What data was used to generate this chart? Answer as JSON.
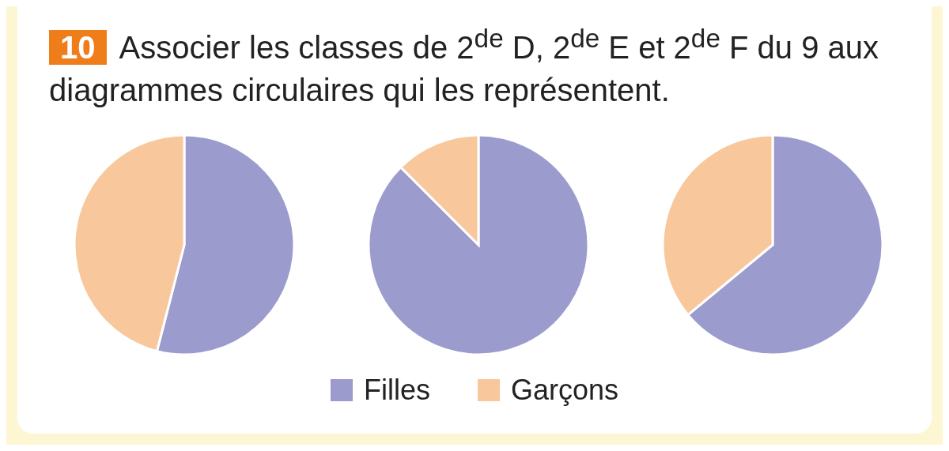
{
  "chart_data": [
    {
      "type": "pie",
      "title": "Associer les classes de 2$^{de}$ D, 2$^{de}$ E et 2$^{de}$ F du 9 aux diagrammes circulaires qui les représentent.",
      "annotations": [
        "10"
      ],
      "categories": [
        "Filles",
        "Garçons"
      ],
      "values": [
        54,
        46
      ],
      "colors": [
        "#9b9ccd",
        "#f8c89c"
      ],
      "legend": "bottom"
    },
    {
      "type": "pie",
      "categories": [
        null,
        null
      ],
      "values": [
        87.5,
        12.5
      ],
      "colors": [
        "#9b9ccd",
        "#f8c89c"
      ]
    },
    {
      "type": "pie",
      "categories": [
        null,
        null
      ],
      "values": [
        64,
        36
      ],
      "colors": [
        "#9b9ccd",
        "#f8c89c"
      ]
    }
  ]
}
